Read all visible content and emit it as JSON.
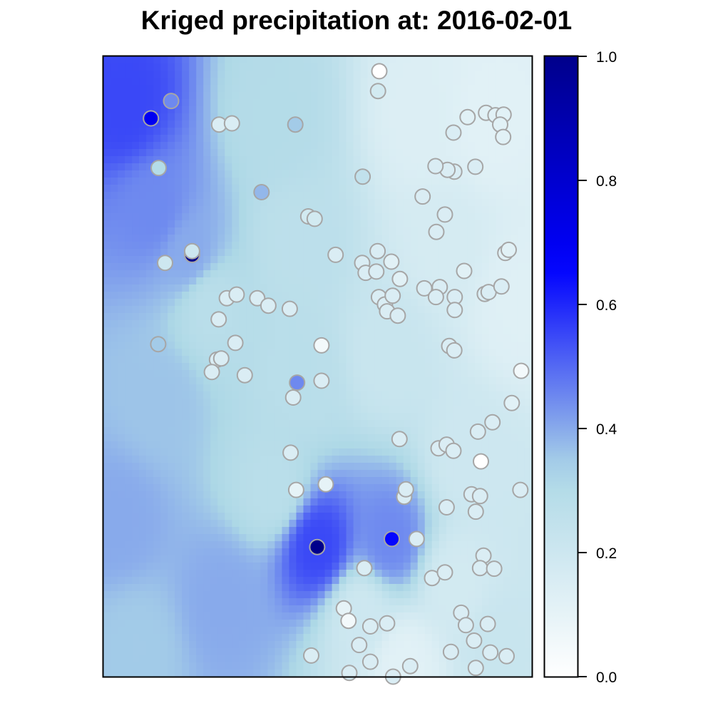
{
  "title": "Kriged precipitation at: 2016-02-01",
  "colors": {
    "scale": [
      "#ffffff",
      "#add8e6",
      "#0000ff",
      "#00008b"
    ],
    "station_outline": "#a6a6a6",
    "axis": "#000000"
  },
  "chart_data": {
    "type": "heatmap",
    "title": "Kriged precipitation at: 2016-02-01",
    "xlabel": "",
    "ylabel": "",
    "x_range": [
      0,
      100
    ],
    "y_range": [
      0,
      100
    ],
    "grid": false,
    "legend": "right colorbar",
    "colorbar": {
      "range": [
        0.0,
        1.0
      ],
      "ticks": [
        0.0,
        0.2,
        0.4,
        0.6,
        0.8,
        1.0
      ],
      "tick_labels": [
        "0.0",
        "0.2",
        "0.4",
        "0.6",
        "0.8",
        "1.0"
      ],
      "colors": [
        "#ffffff",
        "#add8e6",
        "#0000ff",
        "#00008b"
      ]
    },
    "surface_anchors": [
      {
        "x": 5,
        "y": 92,
        "v": 0.55
      },
      {
        "x": 12,
        "y": 75,
        "v": 0.45
      },
      {
        "x": 20,
        "y": 68,
        "v": 0.4
      },
      {
        "x": 13,
        "y": 45,
        "v": 0.36
      },
      {
        "x": 50,
        "y": 21,
        "v": 0.55
      },
      {
        "x": 67,
        "y": 22,
        "v": 0.45
      },
      {
        "x": 3,
        "y": 25,
        "v": 0.4
      },
      {
        "x": 28,
        "y": 12,
        "v": 0.4
      },
      {
        "x": 8,
        "y": 5,
        "v": 0.35
      },
      {
        "x": 47,
        "y": 48,
        "v": 0.28
      },
      {
        "x": 25,
        "y": 60,
        "v": 0.28
      },
      {
        "x": 40,
        "y": 90,
        "v": 0.3
      },
      {
        "x": 45,
        "y": 70,
        "v": 0.27
      },
      {
        "x": 40,
        "y": 30,
        "v": 0.28
      },
      {
        "x": 66,
        "y": 52,
        "v": 0.22
      },
      {
        "x": 85,
        "y": 35,
        "v": 0.2
      },
      {
        "x": 90,
        "y": 90,
        "v": 0.12
      },
      {
        "x": 97,
        "y": 60,
        "v": 0.13
      },
      {
        "x": 92,
        "y": 5,
        "v": 0.22
      },
      {
        "x": 70,
        "y": 2,
        "v": 0.12
      },
      {
        "x": 60,
        "y": 10,
        "v": 0.2
      },
      {
        "x": 80,
        "y": 70,
        "v": 0.17
      },
      {
        "x": 75,
        "y": 90,
        "v": 0.14
      },
      {
        "x": 82,
        "y": 15,
        "v": 0.18
      }
    ],
    "stations": [
      {
        "x": 64.4,
        "y": 97.6,
        "v": 0.0
      },
      {
        "x": 64.1,
        "y": 94.4,
        "v": 0.18
      },
      {
        "x": 11.1,
        "y": 90.0,
        "v": 0.7
      },
      {
        "x": 15.8,
        "y": 92.8,
        "v": 0.45
      },
      {
        "x": 27.0,
        "y": 89.0,
        "v": 0.15
      },
      {
        "x": 30.0,
        "y": 89.2,
        "v": 0.15
      },
      {
        "x": 44.8,
        "y": 89.0,
        "v": 0.35
      },
      {
        "x": 12.9,
        "y": 82.0,
        "v": 0.3
      },
      {
        "x": 60.5,
        "y": 80.6,
        "v": 0.25
      },
      {
        "x": 36.9,
        "y": 78.1,
        "v": 0.38
      },
      {
        "x": 47.8,
        "y": 74.2,
        "v": 0.18
      },
      {
        "x": 49.3,
        "y": 73.8,
        "v": 0.18
      },
      {
        "x": 20.7,
        "y": 68.0,
        "v": 1.0
      },
      {
        "x": 20.7,
        "y": 68.6,
        "v": 0.2
      },
      {
        "x": 14.4,
        "y": 66.7,
        "v": 0.2
      },
      {
        "x": 54.2,
        "y": 68.0,
        "v": 0.15
      },
      {
        "x": 60.4,
        "y": 66.7,
        "v": 0.15
      },
      {
        "x": 61.2,
        "y": 65.1,
        "v": 0.15
      },
      {
        "x": 63.7,
        "y": 65.3,
        "v": 0.15
      },
      {
        "x": 64.0,
        "y": 68.6,
        "v": 0.15
      },
      {
        "x": 67.2,
        "y": 66.9,
        "v": 0.12
      },
      {
        "x": 69.2,
        "y": 64.1,
        "v": 0.12
      },
      {
        "x": 28.8,
        "y": 61.0,
        "v": 0.15
      },
      {
        "x": 31.1,
        "y": 61.6,
        "v": 0.15
      },
      {
        "x": 26.9,
        "y": 57.6,
        "v": 0.15
      },
      {
        "x": 35.9,
        "y": 61.0,
        "v": 0.15
      },
      {
        "x": 38.5,
        "y": 59.8,
        "v": 0.15
      },
      {
        "x": 43.5,
        "y": 59.3,
        "v": 0.15
      },
      {
        "x": 64.3,
        "y": 61.2,
        "v": 0.15
      },
      {
        "x": 65.7,
        "y": 60.0,
        "v": 0.15
      },
      {
        "x": 67.5,
        "y": 61.4,
        "v": 0.15
      },
      {
        "x": 66.2,
        "y": 58.9,
        "v": 0.15
      },
      {
        "x": 68.7,
        "y": 58.2,
        "v": 0.15
      },
      {
        "x": 12.8,
        "y": 53.6,
        "v": 0.35
      },
      {
        "x": 30.8,
        "y": 53.8,
        "v": 0.15
      },
      {
        "x": 26.5,
        "y": 51.1,
        "v": 0.15
      },
      {
        "x": 27.5,
        "y": 51.3,
        "v": 0.15
      },
      {
        "x": 25.3,
        "y": 49.1,
        "v": 0.15
      },
      {
        "x": 33.0,
        "y": 48.6,
        "v": 0.15
      },
      {
        "x": 50.9,
        "y": 53.4,
        "v": 0.05
      },
      {
        "x": 50.9,
        "y": 47.7,
        "v": 0.15
      },
      {
        "x": 45.2,
        "y": 47.4,
        "v": 0.45
      },
      {
        "x": 44.3,
        "y": 45.0,
        "v": 0.15
      },
      {
        "x": 43.7,
        "y": 36.1,
        "v": 0.15
      },
      {
        "x": 45.0,
        "y": 30.1,
        "v": 0.1
      },
      {
        "x": 51.9,
        "y": 31.0,
        "v": 0.1
      },
      {
        "x": 69.1,
        "y": 38.3,
        "v": 0.15
      },
      {
        "x": 70.2,
        "y": 29.0,
        "v": 0.15
      },
      {
        "x": 49.9,
        "y": 20.9,
        "v": 1.0
      },
      {
        "x": 67.3,
        "y": 22.2,
        "v": 0.65
      },
      {
        "x": 73.1,
        "y": 22.2,
        "v": 0.15
      },
      {
        "x": 60.9,
        "y": 17.5,
        "v": 0.15
      },
      {
        "x": 56.1,
        "y": 11.0,
        "v": 0.1
      },
      {
        "x": 57.2,
        "y": 9.0,
        "v": 0.05
      },
      {
        "x": 62.3,
        "y": 8.1,
        "v": 0.15
      },
      {
        "x": 66.2,
        "y": 8.6,
        "v": 0.15
      },
      {
        "x": 59.7,
        "y": 5.1,
        "v": 0.15
      },
      {
        "x": 62.3,
        "y": 2.4,
        "v": 0.15
      },
      {
        "x": 48.5,
        "y": 3.4,
        "v": 0.15
      },
      {
        "x": 57.4,
        "y": 0.6,
        "v": 0.15
      },
      {
        "x": 67.6,
        "y": 0.0,
        "v": 0.15
      },
      {
        "x": 71.6,
        "y": 1.7,
        "v": 0.15
      },
      {
        "x": 76.7,
        "y": 15.9,
        "v": 0.15
      },
      {
        "x": 79.7,
        "y": 16.8,
        "v": 0.15
      },
      {
        "x": 88.7,
        "y": 19.5,
        "v": 0.15
      },
      {
        "x": 87.9,
        "y": 17.5,
        "v": 0.15
      },
      {
        "x": 91.2,
        "y": 17.4,
        "v": 0.15
      },
      {
        "x": 83.5,
        "y": 10.3,
        "v": 0.15
      },
      {
        "x": 84.6,
        "y": 8.3,
        "v": 0.15
      },
      {
        "x": 89.7,
        "y": 8.5,
        "v": 0.15
      },
      {
        "x": 86.5,
        "y": 5.8,
        "v": 0.15
      },
      {
        "x": 90.3,
        "y": 3.9,
        "v": 0.15
      },
      {
        "x": 94.1,
        "y": 3.3,
        "v": 0.15
      },
      {
        "x": 81.1,
        "y": 4.0,
        "v": 0.15
      },
      {
        "x": 86.9,
        "y": 1.4,
        "v": 0.15
      },
      {
        "x": 70.6,
        "y": 30.2,
        "v": 0.15
      },
      {
        "x": 80.1,
        "y": 27.3,
        "v": 0.15
      },
      {
        "x": 85.9,
        "y": 29.4,
        "v": 0.15
      },
      {
        "x": 87.9,
        "y": 29.1,
        "v": 0.15
      },
      {
        "x": 86.9,
        "y": 26.6,
        "v": 0.15
      },
      {
        "x": 97.3,
        "y": 30.1,
        "v": 0.15
      },
      {
        "x": 78.2,
        "y": 36.8,
        "v": 0.15
      },
      {
        "x": 80.1,
        "y": 37.4,
        "v": 0.15
      },
      {
        "x": 81.7,
        "y": 36.4,
        "v": 0.15
      },
      {
        "x": 88.1,
        "y": 34.7,
        "v": 0.0
      },
      {
        "x": 87.4,
        "y": 39.5,
        "v": 0.15
      },
      {
        "x": 90.8,
        "y": 41.0,
        "v": 0.15
      },
      {
        "x": 95.3,
        "y": 44.1,
        "v": 0.12
      },
      {
        "x": 97.5,
        "y": 49.3,
        "v": 0.05
      },
      {
        "x": 80.7,
        "y": 53.3,
        "v": 0.15
      },
      {
        "x": 81.9,
        "y": 52.6,
        "v": 0.15
      },
      {
        "x": 74.9,
        "y": 62.6,
        "v": 0.15
      },
      {
        "x": 78.5,
        "y": 62.8,
        "v": 0.15
      },
      {
        "x": 77.6,
        "y": 61.2,
        "v": 0.15
      },
      {
        "x": 82.0,
        "y": 61.2,
        "v": 0.15
      },
      {
        "x": 82.0,
        "y": 59.1,
        "v": 0.15
      },
      {
        "x": 84.2,
        "y": 65.4,
        "v": 0.12
      },
      {
        "x": 89.0,
        "y": 61.7,
        "v": 0.15
      },
      {
        "x": 89.9,
        "y": 62.0,
        "v": 0.15
      },
      {
        "x": 92.9,
        "y": 62.9,
        "v": 0.15
      },
      {
        "x": 93.8,
        "y": 68.3,
        "v": 0.12
      },
      {
        "x": 94.6,
        "y": 68.8,
        "v": 0.12
      },
      {
        "x": 74.5,
        "y": 77.4,
        "v": 0.15
      },
      {
        "x": 77.7,
        "y": 71.7,
        "v": 0.15
      },
      {
        "x": 79.7,
        "y": 74.5,
        "v": 0.15
      },
      {
        "x": 81.9,
        "y": 81.4,
        "v": 0.15
      },
      {
        "x": 80.3,
        "y": 81.7,
        "v": 0.15
      },
      {
        "x": 77.5,
        "y": 82.3,
        "v": 0.15
      },
      {
        "x": 86.8,
        "y": 82.2,
        "v": 0.15
      },
      {
        "x": 81.7,
        "y": 87.7,
        "v": 0.15
      },
      {
        "x": 85.0,
        "y": 90.2,
        "v": 0.12
      },
      {
        "x": 89.3,
        "y": 90.9,
        "v": 0.12
      },
      {
        "x": 91.5,
        "y": 90.5,
        "v": 0.12
      },
      {
        "x": 93.4,
        "y": 90.6,
        "v": 0.12
      },
      {
        "x": 92.6,
        "y": 89.0,
        "v": 0.12
      },
      {
        "x": 93.3,
        "y": 87.0,
        "v": 0.12
      }
    ]
  }
}
